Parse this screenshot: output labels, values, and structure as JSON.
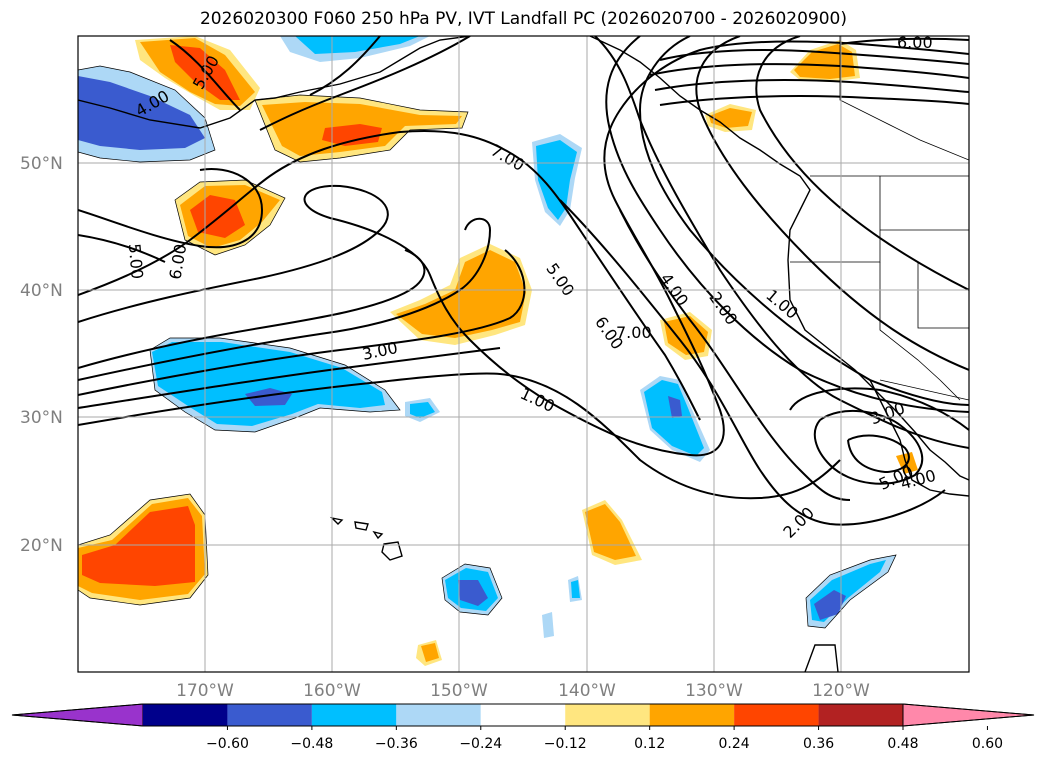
{
  "title": "2026020300 F060 250 hPa PV, IVT Landfall PC (2026020700 - 2026020900)",
  "latitudes": [
    "50°N",
    "40°N",
    "30°N",
    "20°N"
  ],
  "longitudes": [
    "170°W",
    "160°W",
    "150°W",
    "140°W",
    "130°W",
    "120°W"
  ],
  "contour_labels": [
    "6.00",
    "5.00",
    "4.00",
    "5.00",
    "6.00",
    "7.00",
    "5.00",
    "3.00",
    "1.00",
    "6.00",
    "4.00",
    "7.00",
    "2.00",
    "1.00",
    "3.00",
    "2.00",
    "5.00",
    "4.00"
  ],
  "colorbar": {
    "ticks": [
      "−0.60",
      "−0.48",
      "−0.36",
      "−0.24",
      "−0.12",
      "0.12",
      "0.24",
      "0.36",
      "0.48",
      "0.60"
    ],
    "colors": [
      "#9933cc",
      "#00008b",
      "#3a5bcf",
      "#00bfff",
      "#add8f6",
      "#ffffff",
      "#ffe680",
      "#ffa500",
      "#ff4500",
      "#b22222",
      "#ff88aa"
    ]
  },
  "fill_colors": {
    "neg_light": "#add8f6",
    "neg_mid": "#00bfff",
    "neg_dark": "#3a5bcf",
    "pos_light": "#ffe680",
    "pos_mid": "#ffa500",
    "pos_dark": "#ff4500"
  }
}
